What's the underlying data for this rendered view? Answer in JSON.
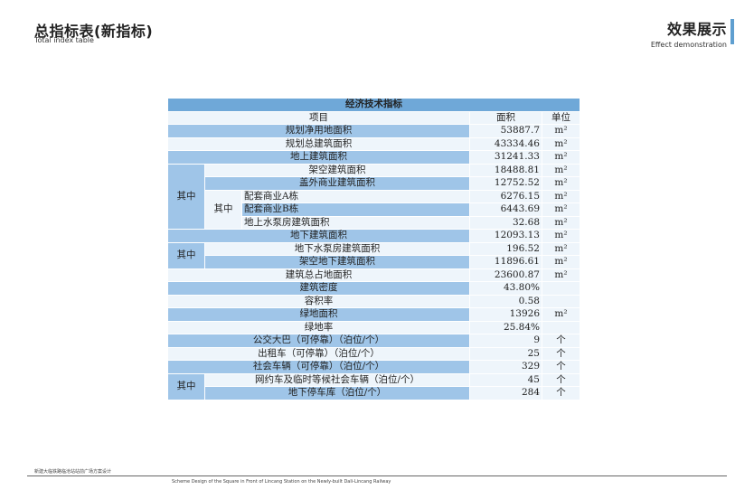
{
  "header": {
    "title_cn": "总指标表(新指标)",
    "title_en": "Total index table",
    "right_cn": "效果展示",
    "right_en": "Effect demonstration"
  },
  "table": {
    "title": "经济技术指标",
    "col_item": "项目",
    "col_area": "面积",
    "col_unit": "单位",
    "qizhong": "其中",
    "rows": [
      {
        "name": "规划净用地面积",
        "value": "53887.7",
        "unit": "m²"
      },
      {
        "name": "规划总建筑面积",
        "value": "43334.46",
        "unit": "m²"
      },
      {
        "name": "地上建筑面积",
        "value": "31241.33",
        "unit": "m²"
      },
      {
        "name": "架空建筑面积",
        "value": "18488.81",
        "unit": "m²"
      },
      {
        "name": "盖外商业建筑面积",
        "value": "12752.52",
        "unit": "m²"
      },
      {
        "name": "配套商业A栋",
        "value": "6276.15",
        "unit": "m²"
      },
      {
        "name": "配套商业B栋",
        "value": "6443.69",
        "unit": "m²"
      },
      {
        "name": "地上水泵房建筑面积",
        "value": "32.68",
        "unit": "m²"
      },
      {
        "name": "地下建筑面积",
        "value": "12093.13",
        "unit": "m²"
      },
      {
        "name": "地下水泵房建筑面积",
        "value": "196.52",
        "unit": "m²"
      },
      {
        "name": "架空地下建筑面积",
        "value": "11896.61",
        "unit": "m²"
      },
      {
        "name": "建筑总占地面积",
        "value": "23600.87",
        "unit": "m²"
      },
      {
        "name": "建筑密度",
        "value": "43.80%",
        "unit": ""
      },
      {
        "name": "容积率",
        "value": "0.58",
        "unit": ""
      },
      {
        "name": "绿地面积",
        "value": "13926",
        "unit": "m²"
      },
      {
        "name": "绿地率",
        "value": "25.84%",
        "unit": ""
      },
      {
        "name": "公交大巴（可停靠）（泊位/个）",
        "value": "9",
        "unit": "个"
      },
      {
        "name": "出租车（可停靠）（泊位/个）",
        "value": "25",
        "unit": "个"
      },
      {
        "name": "社会车辆（可停靠）（泊位/个）",
        "value": "329",
        "unit": "个"
      },
      {
        "name": "网约车及临时等候社会车辆（泊位/个）",
        "value": "45",
        "unit": "个"
      },
      {
        "name": "地下停车库（泊位/个）",
        "value": "284",
        "unit": "个"
      }
    ]
  },
  "footer": {
    "left": "新建大临铁路临沧站站前广场方案设计",
    "center": "Scheme Design of the Square in Front of Lincang Station on the Newly-built Dali-Lincang Railway"
  }
}
